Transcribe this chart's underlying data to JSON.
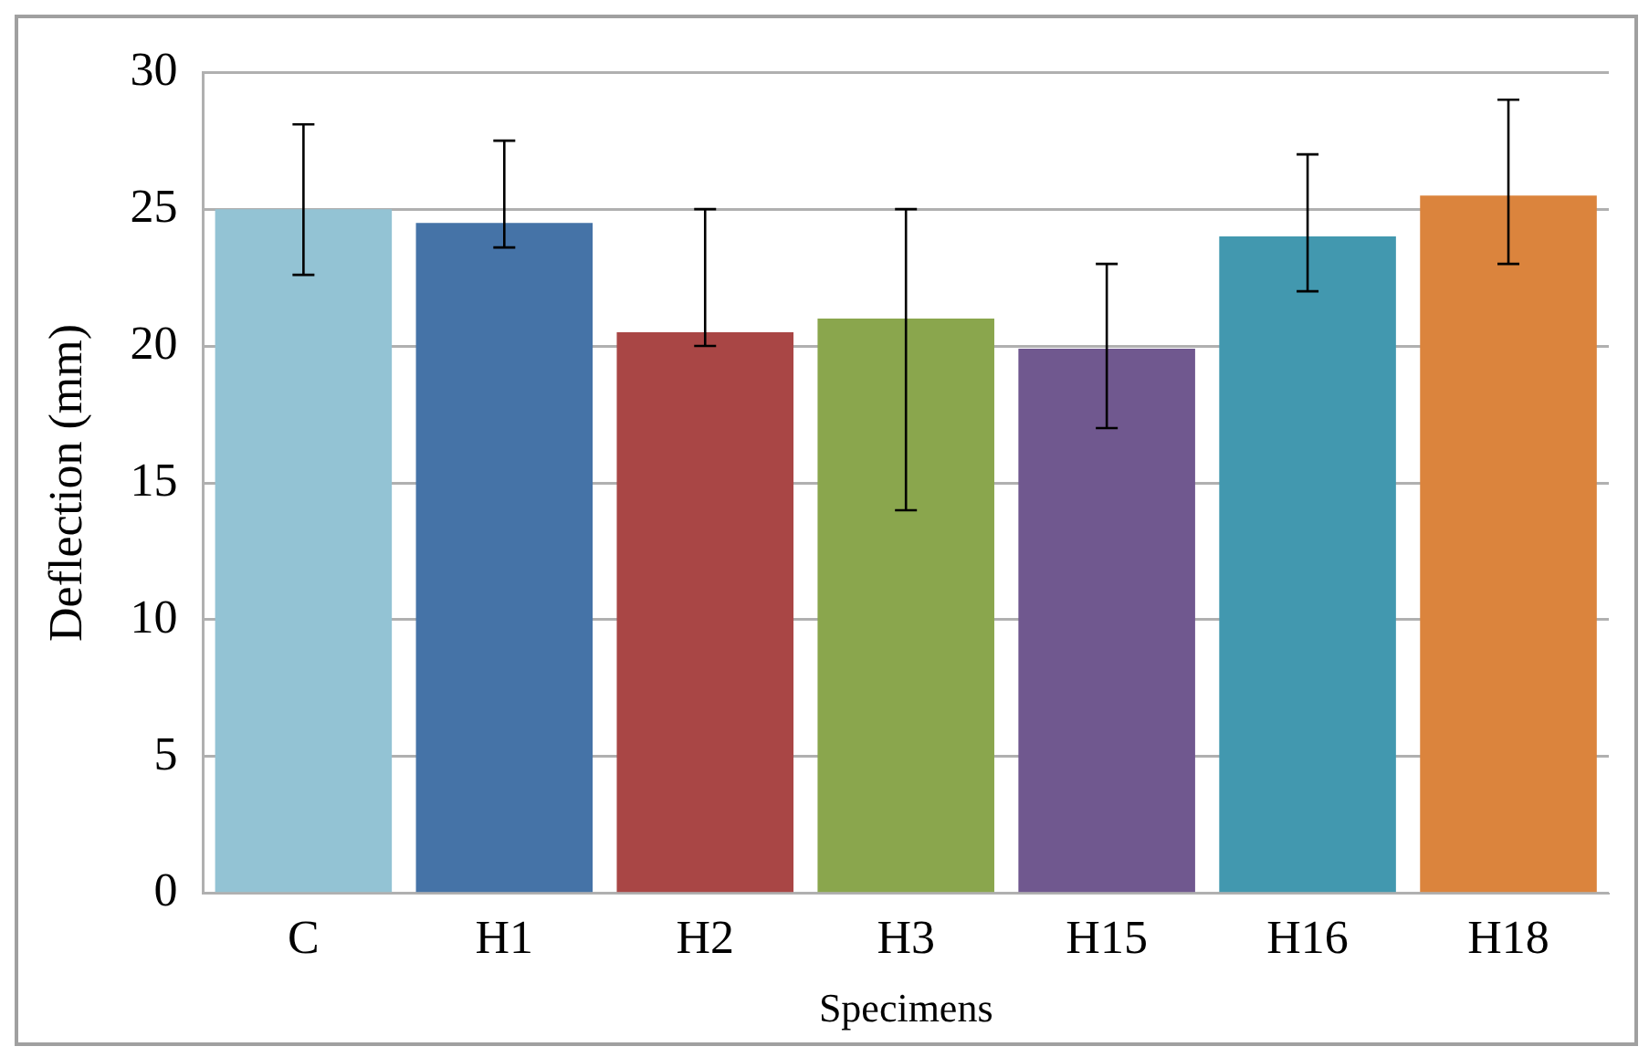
{
  "chart_data": {
    "type": "bar",
    "xlabel": "Specimens",
    "ylabel": "Deflection (mm)",
    "categories": [
      "C",
      "H1",
      "H2",
      "H3",
      "H15",
      "H16",
      "H18"
    ],
    "values": [
      25,
      24.5,
      20.5,
      21,
      19.9,
      24,
      25.5
    ],
    "colors": [
      "#93c3d4",
      "#4573a7",
      "#a94645",
      "#8aa64d",
      "#70588f",
      "#4298af",
      "#db843d"
    ],
    "errors": [
      [
        22.6,
        28.1
      ],
      [
        23.6,
        27.5
      ],
      [
        20,
        25
      ],
      [
        14,
        25
      ],
      [
        17,
        23
      ],
      [
        22,
        27
      ],
      [
        23,
        29
      ]
    ],
    "ylim": [
      0,
      30
    ],
    "yticks": [
      0,
      5,
      10,
      15,
      20,
      25,
      30
    ],
    "grid": "y"
  }
}
